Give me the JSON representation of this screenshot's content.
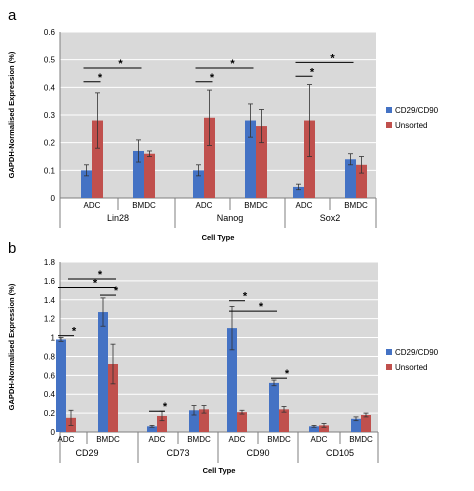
{
  "colors": {
    "series1": "#4472c4",
    "series2": "#c0504d",
    "plot_bg": "#d9d9d9",
    "error": "#333333"
  },
  "chart_data": [
    {
      "type": "bar",
      "panel_label": "a",
      "ylabel": "GAPDH-Normalised Expression (%)",
      "xlabel": "Cell Type",
      "ylim": [
        0,
        0.6
      ],
      "yticks": [
        "0",
        "0.1",
        "0.2",
        "0.3",
        "0.4",
        "0.5",
        "0.6"
      ],
      "grid": true,
      "legend_position": "right",
      "groups": [
        "Lin28",
        "Nanog",
        "Sox2"
      ],
      "categories": [
        "ADC",
        "BMDC"
      ],
      "series": [
        {
          "name": "CD29/CD90",
          "values": [
            [
              0.1,
              0.17
            ],
            [
              0.1,
              0.28
            ],
            [
              0.04,
              0.14
            ]
          ],
          "errors": [
            [
              0.02,
              0.04
            ],
            [
              0.02,
              0.06
            ],
            [
              0.01,
              0.02
            ]
          ]
        },
        {
          "name": "Unsorted",
          "values": [
            [
              0.28,
              0.16
            ],
            [
              0.29,
              0.26
            ],
            [
              0.28,
              0.12
            ]
          ],
          "errors": [
            [
              0.1,
              0.01
            ],
            [
              0.1,
              0.06
            ],
            [
              0.13,
              0.03
            ]
          ]
        }
      ],
      "significance": [
        {
          "group": 0,
          "bars": [
            [
              0,
              0
            ],
            [
              0,
              1
            ]
          ],
          "level": 0.42,
          "label": "*"
        },
        {
          "group": 0,
          "bars": [
            [
              0,
              0
            ],
            [
              1,
              0
            ]
          ],
          "level": 0.47,
          "label": "*"
        },
        {
          "group": 1,
          "bars": [
            [
              0,
              0
            ],
            [
              0,
              1
            ]
          ],
          "level": 0.42,
          "label": "*"
        },
        {
          "group": 1,
          "bars": [
            [
              0,
              0
            ],
            [
              1,
              0
            ]
          ],
          "level": 0.47,
          "label": "*"
        },
        {
          "group": 2,
          "bars": [
            [
              0,
              0
            ],
            [
              0,
              1
            ]
          ],
          "level": 0.44,
          "label": "*"
        },
        {
          "group": 2,
          "bars": [
            [
              0,
              0
            ],
            [
              1,
              0
            ]
          ],
          "level": 0.49,
          "label": "*"
        }
      ]
    },
    {
      "type": "bar",
      "panel_label": "b",
      "ylabel": "GAPDH-Normalised Expression (%)",
      "xlabel": "Cell Type",
      "ylim": [
        0,
        1.8
      ],
      "yticks": [
        "0",
        "0.2",
        "0.4",
        "0.6",
        "0.8",
        "1",
        "1.2",
        "1.4",
        "1.6",
        "1.8"
      ],
      "grid": true,
      "legend_position": "right",
      "groups": [
        "CD29",
        "CD73",
        "CD90",
        "CD105"
      ],
      "categories": [
        "ADC",
        "BMDC"
      ],
      "series": [
        {
          "name": "CD29/CD90",
          "values": [
            [
              0.98,
              1.27
            ],
            [
              0.06,
              0.23
            ],
            [
              1.1,
              0.52
            ],
            [
              0.06,
              0.14
            ]
          ],
          "errors": [
            [
              0.02,
              0.15
            ],
            [
              0.01,
              0.05
            ],
            [
              0.23,
              0.03
            ],
            [
              0.01,
              0.02
            ]
          ]
        },
        {
          "name": "Unsorted",
          "values": [
            [
              0.15,
              0.72
            ],
            [
              0.17,
              0.24
            ],
            [
              0.21,
              0.24
            ],
            [
              0.07,
              0.18
            ]
          ],
          "errors": [
            [
              0.08,
              0.21
            ],
            [
              0.05,
              0.04
            ],
            [
              0.02,
              0.03
            ],
            [
              0.02,
              0.02
            ]
          ]
        }
      ],
      "significance": [
        {
          "group": 0,
          "bars": [
            [
              0,
              0
            ],
            [
              0,
              1
            ]
          ],
          "level": 1.02,
          "label": "*"
        },
        {
          "group": 0,
          "bars": [
            [
              0,
              0
            ],
            [
              1,
              1
            ]
          ],
          "level": 1.53,
          "label": "*"
        },
        {
          "group": 0,
          "bars": [
            [
              1,
              0
            ],
            [
              1,
              1
            ]
          ],
          "level": 1.45,
          "label": "*"
        },
        {
          "group": 0,
          "bars": [
            [
              0,
              1
            ],
            [
              1,
              1
            ]
          ],
          "level": 1.62,
          "label": "*"
        },
        {
          "group": 1,
          "bars": [
            [
              0,
              0
            ],
            [
              0,
              1
            ]
          ],
          "level": 0.22,
          "label": "*"
        },
        {
          "group": 2,
          "bars": [
            [
              0,
              0
            ],
            [
              0,
              1
            ]
          ],
          "level": 1.39,
          "label": "*"
        },
        {
          "group": 2,
          "bars": [
            [
              0,
              0
            ],
            [
              1,
              0
            ]
          ],
          "level": 1.28,
          "label": "*"
        },
        {
          "group": 2,
          "bars": [
            [
              1,
              0
            ],
            [
              1,
              1
            ]
          ],
          "level": 0.57,
          "label": "*"
        }
      ]
    }
  ]
}
